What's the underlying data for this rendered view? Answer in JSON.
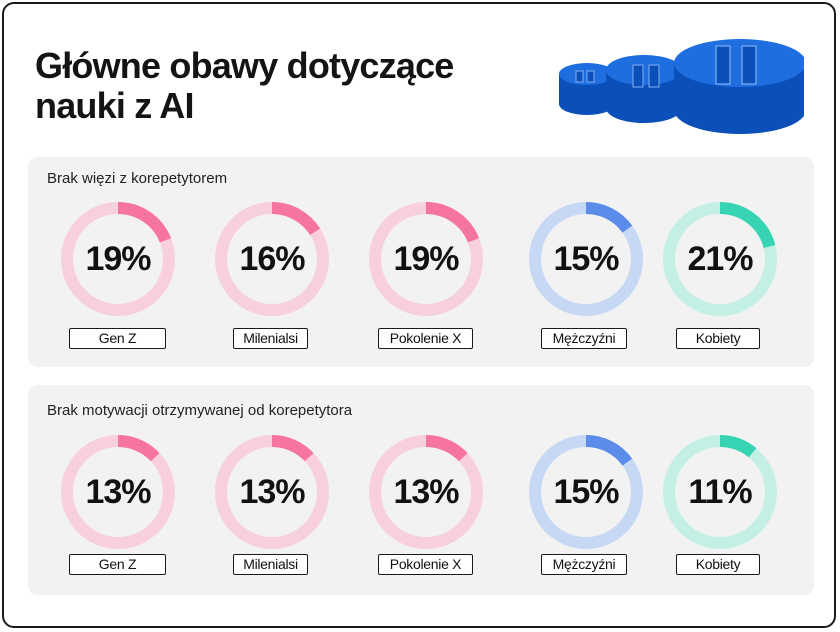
{
  "title": "Główne obawy dotyczące nauki z AI",
  "colors": {
    "generation_fill": "#f6759e",
    "generation_track": "#f8cfdf",
    "men_fill": "#5b8cea",
    "men_track": "#c7d8f5",
    "women_fill": "#37d4b4",
    "women_track": "#c3efe4",
    "deco_blue": "#1f6ee0"
  },
  "decoration": {
    "icon": "stacked-blue-coins-icon"
  },
  "chart_data": [
    {
      "type": "donut",
      "title": "Brak więzi z korepetytorem",
      "categories": [
        "Gen Z",
        "Milenialsi",
        "Pokolenie X",
        "Mężczyźni",
        "Kobiety"
      ],
      "values": [
        19,
        16,
        19,
        15,
        21
      ],
      "labels": [
        "19%",
        "16%",
        "19%",
        "15%",
        "21%"
      ],
      "unit": "%"
    },
    {
      "type": "donut",
      "title": "Brak motywacji otrzymywanej od korepetytora",
      "categories": [
        "Gen Z",
        "Milenialsi",
        "Pokolenie X",
        "Mężczyźni",
        "Kobiety"
      ],
      "values": [
        13,
        13,
        13,
        15,
        11
      ],
      "labels": [
        "13%",
        "13%",
        "13%",
        "15%",
        "11%"
      ],
      "unit": "%"
    }
  ]
}
